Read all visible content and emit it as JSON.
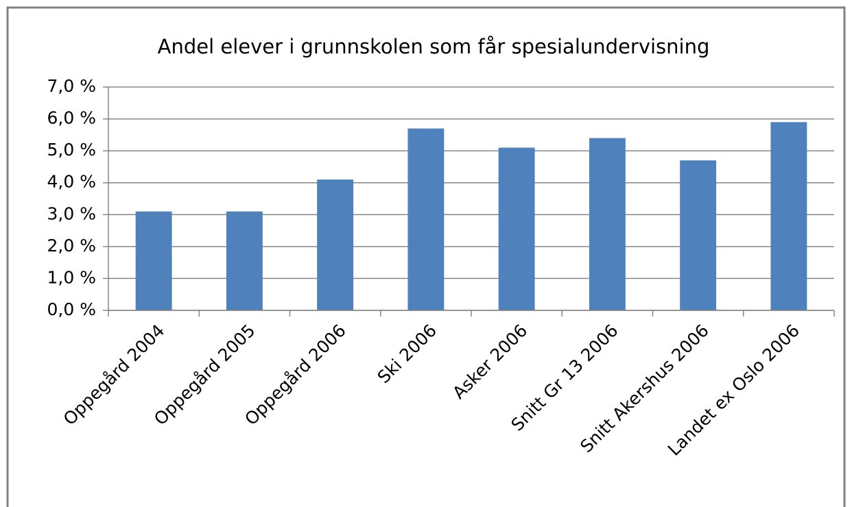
{
  "chart_data": {
    "type": "bar",
    "title": "Andel elever i grunnskolen som får spesialundervisning",
    "categories": [
      "Oppegård 2004",
      "Oppegård 2005",
      "Oppegård 2006",
      "Ski 2006",
      "Asker 2006",
      "Snitt Gr 13 2006",
      "Snitt Akershus 2006",
      "Landet ex Oslo 2006"
    ],
    "values": [
      3.1,
      3.1,
      4.1,
      5.7,
      5.1,
      5.4,
      4.7,
      5.9
    ],
    "color": "#4f81bd",
    "ylim": [
      0,
      7
    ],
    "yticks": [
      {
        "value": 0,
        "label": "0,0 %"
      },
      {
        "value": 1,
        "label": "1,0 %"
      },
      {
        "value": 2,
        "label": "2,0 %"
      },
      {
        "value": 3,
        "label": "3,0 %"
      },
      {
        "value": 4,
        "label": "4,0 %"
      },
      {
        "value": 5,
        "label": "5,0 %"
      },
      {
        "value": 6,
        "label": "6,0 %"
      },
      {
        "value": 7,
        "label": "7,0 %"
      }
    ],
    "grid": true
  }
}
